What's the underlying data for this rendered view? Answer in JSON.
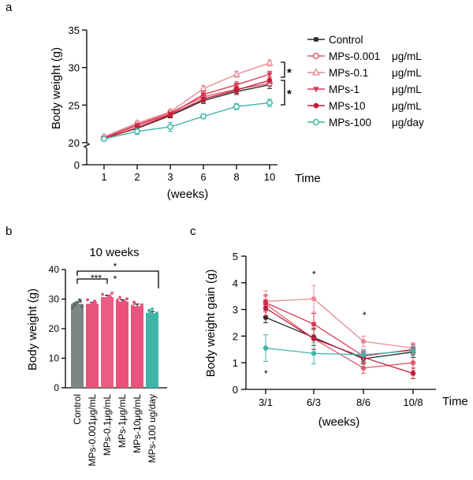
{
  "panels": {
    "a": "a",
    "b": "b",
    "c": "c"
  },
  "chart_data": [
    {
      "id": "a",
      "type": "line",
      "ylabel": "Body weight (g)",
      "xlabel": "(weeks)",
      "x_axis_name": "Time",
      "categories": [
        "1",
        "2",
        "3",
        "6",
        "8",
        "10"
      ],
      "y_ticks": [
        "0",
        "20",
        "25",
        "30",
        "35"
      ],
      "ylim": [
        20,
        35
      ],
      "axis_break": true,
      "series": [
        {
          "name": "Control",
          "unit": "",
          "color": "#2b2b2b",
          "marker": "square",
          "values": [
            20.6,
            21.9,
            23.6,
            25.6,
            26.8,
            27.7
          ],
          "errors": [
            0.2,
            0.3,
            0.3,
            0.4,
            0.4,
            0.5
          ]
        },
        {
          "name": "MPs-0.001",
          "unit": "μg/mL",
          "color": "#e05a6d",
          "marker": "circle-open",
          "values": [
            20.7,
            22.4,
            24.0,
            26.1,
            27.1,
            27.9
          ],
          "errors": [
            0.2,
            0.3,
            0.3,
            0.3,
            0.4,
            0.4
          ]
        },
        {
          "name": "MPs-0.1",
          "unit": "μg/mL",
          "color": "#e98a95",
          "marker": "triangle-open",
          "values": [
            20.8,
            22.6,
            24.1,
            27.2,
            29.1,
            30.6
          ],
          "errors": [
            0.2,
            0.3,
            0.3,
            0.4,
            0.4,
            0.4
          ]
        },
        {
          "name": "MPs-1",
          "unit": "μg/mL",
          "color": "#d83a55",
          "marker": "triangle-down",
          "values": [
            20.6,
            22.3,
            23.8,
            26.4,
            27.7,
            29.1
          ],
          "errors": [
            0.2,
            0.3,
            0.3,
            0.4,
            0.4,
            0.4
          ]
        },
        {
          "name": "MPs-10",
          "unit": "μg/mL",
          "color": "#c21f3a",
          "marker": "circle",
          "values": [
            20.5,
            22.0,
            23.7,
            25.8,
            27.0,
            28.3
          ],
          "errors": [
            0.2,
            0.3,
            0.3,
            0.4,
            0.4,
            0.4
          ]
        },
        {
          "name": "MPs-100",
          "unit": "μg/day",
          "color": "#3fb5a7",
          "marker": "circle-open",
          "values": [
            20.5,
            21.5,
            22.1,
            23.5,
            24.8,
            25.3
          ],
          "errors": [
            0.2,
            0.4,
            0.6,
            0.3,
            0.4,
            0.5
          ]
        }
      ],
      "annotations": [
        "*",
        "*"
      ]
    },
    {
      "id": "b",
      "type": "bar",
      "title": "10 weeks",
      "ylabel": "Body weight (g)",
      "categories": [
        "Control",
        "MPs-0.001μg/mL",
        "MPs-0.1μg/mL",
        "MPs-1μg/mL",
        "MPs-10μg/mL",
        "MPs-100 ug/day"
      ],
      "values": [
        28.4,
        28.4,
        30.7,
        29.2,
        27.6,
        25.3
      ],
      "errors": [
        0.6,
        0.5,
        0.6,
        0.6,
        0.7,
        0.5
      ],
      "colors": [
        "#7d8585",
        "#e8527d",
        "#ea5c83",
        "#e8527d",
        "#e8527d",
        "#3fb5a7"
      ],
      "y_ticks": [
        "0",
        "10",
        "20",
        "30",
        "40"
      ],
      "ylim": [
        0,
        40
      ],
      "significance": [
        {
          "from": 1,
          "to": 3,
          "label": "***"
        },
        {
          "from": 1,
          "to": 3,
          "label": "*"
        },
        {
          "from": 1,
          "to": 6,
          "label": "*"
        }
      ]
    },
    {
      "id": "c",
      "type": "line",
      "ylabel": "Body weight gain (g)",
      "xlabel": "(weeks)",
      "x_axis_name": "Time",
      "categories": [
        "3/1",
        "6/3",
        "8/6",
        "10/8"
      ],
      "y_ticks": [
        "0",
        "1",
        "2",
        "3",
        "4",
        "5"
      ],
      "ylim": [
        0,
        5
      ],
      "series": [
        {
          "name": "Control",
          "color": "#2b2b2b",
          "values": [
            2.7,
            1.95,
            1.15,
            1.4
          ],
          "errors": [
            0.2,
            0.3,
            0.2,
            0.2
          ]
        },
        {
          "name": "MPs-0.001",
          "color": "#e05a6d",
          "values": [
            3.2,
            1.9,
            0.8,
            1.0
          ],
          "errors": [
            0.3,
            0.4,
            0.2,
            0.3
          ]
        },
        {
          "name": "MPs-0.1",
          "color": "#e98a95",
          "values": [
            3.3,
            3.4,
            1.8,
            1.55
          ],
          "errors": [
            0.4,
            0.5,
            0.2,
            0.2
          ]
        },
        {
          "name": "MPs-1",
          "color": "#d83a55",
          "values": [
            3.25,
            2.45,
            1.25,
            1.5
          ],
          "errors": [
            0.3,
            0.4,
            0.2,
            0.2
          ]
        },
        {
          "name": "MPs-10",
          "color": "#c21f3a",
          "values": [
            3.05,
            1.9,
            1.2,
            0.6
          ],
          "errors": [
            0.3,
            0.4,
            0.2,
            0.2
          ]
        },
        {
          "name": "MPs-100",
          "color": "#3fb5a7",
          "values": [
            1.55,
            1.35,
            1.3,
            1.45
          ],
          "errors": [
            0.5,
            0.4,
            0.2,
            0.2
          ]
        }
      ],
      "annotations": [
        "*",
        "*",
        "*"
      ]
    }
  ]
}
